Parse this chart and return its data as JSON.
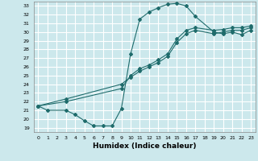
{
  "xlabel": "Humidex (Indice chaleur)",
  "ylabel": "",
  "bg_color": "#cce8ec",
  "grid_color": "#ffffff",
  "line_color": "#1e6b6b",
  "xlim": [
    -0.5,
    23.5
  ],
  "ylim": [
    18.5,
    33.5
  ],
  "xticks": [
    0,
    1,
    2,
    3,
    4,
    5,
    6,
    7,
    8,
    9,
    10,
    11,
    12,
    13,
    14,
    15,
    16,
    17,
    18,
    19,
    20,
    21,
    22,
    23
  ],
  "yticks": [
    19,
    20,
    21,
    22,
    23,
    24,
    25,
    26,
    27,
    28,
    29,
    30,
    31,
    32,
    33
  ],
  "line1_x": [
    0,
    1,
    3,
    4,
    5,
    6,
    7,
    8,
    9,
    10,
    11,
    12,
    13,
    14,
    15,
    16,
    17,
    19,
    20,
    21,
    22,
    23
  ],
  "line1_y": [
    21.5,
    21.0,
    21.0,
    20.5,
    19.8,
    19.2,
    19.2,
    19.2,
    21.2,
    27.5,
    31.5,
    32.3,
    32.8,
    33.2,
    33.3,
    33.0,
    31.8,
    30.0,
    29.8,
    30.0,
    29.7,
    30.2
  ],
  "line2_x": [
    0,
    3,
    9,
    10,
    11,
    12,
    13,
    14,
    15,
    16,
    17,
    19,
    20,
    21,
    22,
    23
  ],
  "line2_y": [
    21.5,
    22.0,
    23.5,
    25.0,
    25.8,
    26.2,
    26.8,
    27.5,
    29.2,
    30.2,
    30.5,
    30.2,
    30.3,
    30.5,
    30.5,
    30.7
  ],
  "line3_x": [
    0,
    3,
    9,
    10,
    11,
    12,
    13,
    14,
    15,
    16,
    17,
    19,
    20,
    21,
    22,
    23
  ],
  "line3_y": [
    21.5,
    22.3,
    24.0,
    24.8,
    25.5,
    26.0,
    26.5,
    27.2,
    28.8,
    29.8,
    30.2,
    29.8,
    30.0,
    30.2,
    30.2,
    30.5
  ]
}
